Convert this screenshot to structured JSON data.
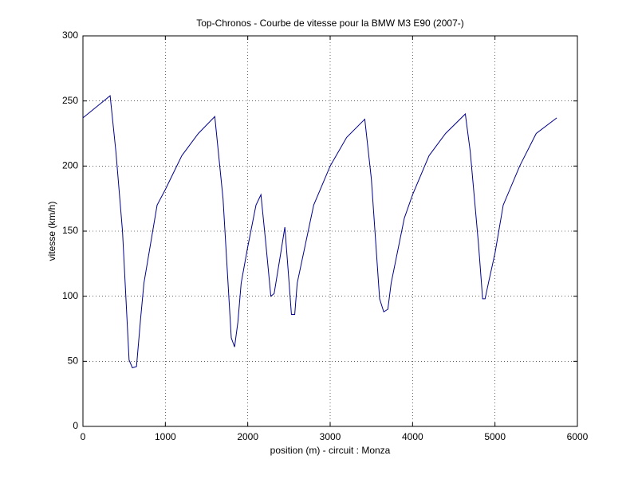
{
  "chart_data": {
    "type": "line",
    "title": "Top-Chronos - Courbe de vitesse pour la BMW M3 E90 (2007-)",
    "x_label": "position (m) - circuit : Monza",
    "y_label": "vitesse (km/h)",
    "xlim": [
      0,
      6000
    ],
    "xticks": [
      0,
      1000,
      2000,
      3000,
      4000,
      5000,
      6000
    ],
    "ylim": [
      0,
      300
    ],
    "yticks": [
      0,
      50,
      100,
      150,
      200,
      250,
      300
    ],
    "grid": true,
    "series": [
      {
        "color": "#00008b",
        "x": [
          0,
          330,
          400,
          480,
          560,
          600,
          650,
          700,
          740,
          900,
          1000,
          1200,
          1400,
          1600,
          1700,
          1800,
          1840,
          1880,
          1920,
          2000,
          2100,
          2160,
          2220,
          2280,
          2320,
          2400,
          2450,
          2490,
          2530,
          2570,
          2600,
          2800,
          3000,
          3200,
          3420,
          3500,
          3600,
          3650,
          3700,
          3740,
          3900,
          4000,
          4200,
          4400,
          4640,
          4700,
          4800,
          4850,
          4880,
          4920,
          5000,
          5100,
          5300,
          5500,
          5750
        ],
        "values": [
          237,
          254,
          211,
          150,
          51,
          45,
          46,
          83,
          110,
          170,
          182,
          208,
          225,
          238,
          175,
          68,
          61,
          80,
          110,
          138,
          170,
          178,
          140,
          100,
          102,
          133,
          153,
          120,
          86,
          86,
          110,
          170,
          200,
          222,
          236,
          190,
          98,
          88,
          90,
          110,
          160,
          178,
          208,
          225,
          240,
          211,
          140,
          98,
          98,
          110,
          133,
          170,
          200,
          225,
          237
        ]
      }
    ]
  }
}
